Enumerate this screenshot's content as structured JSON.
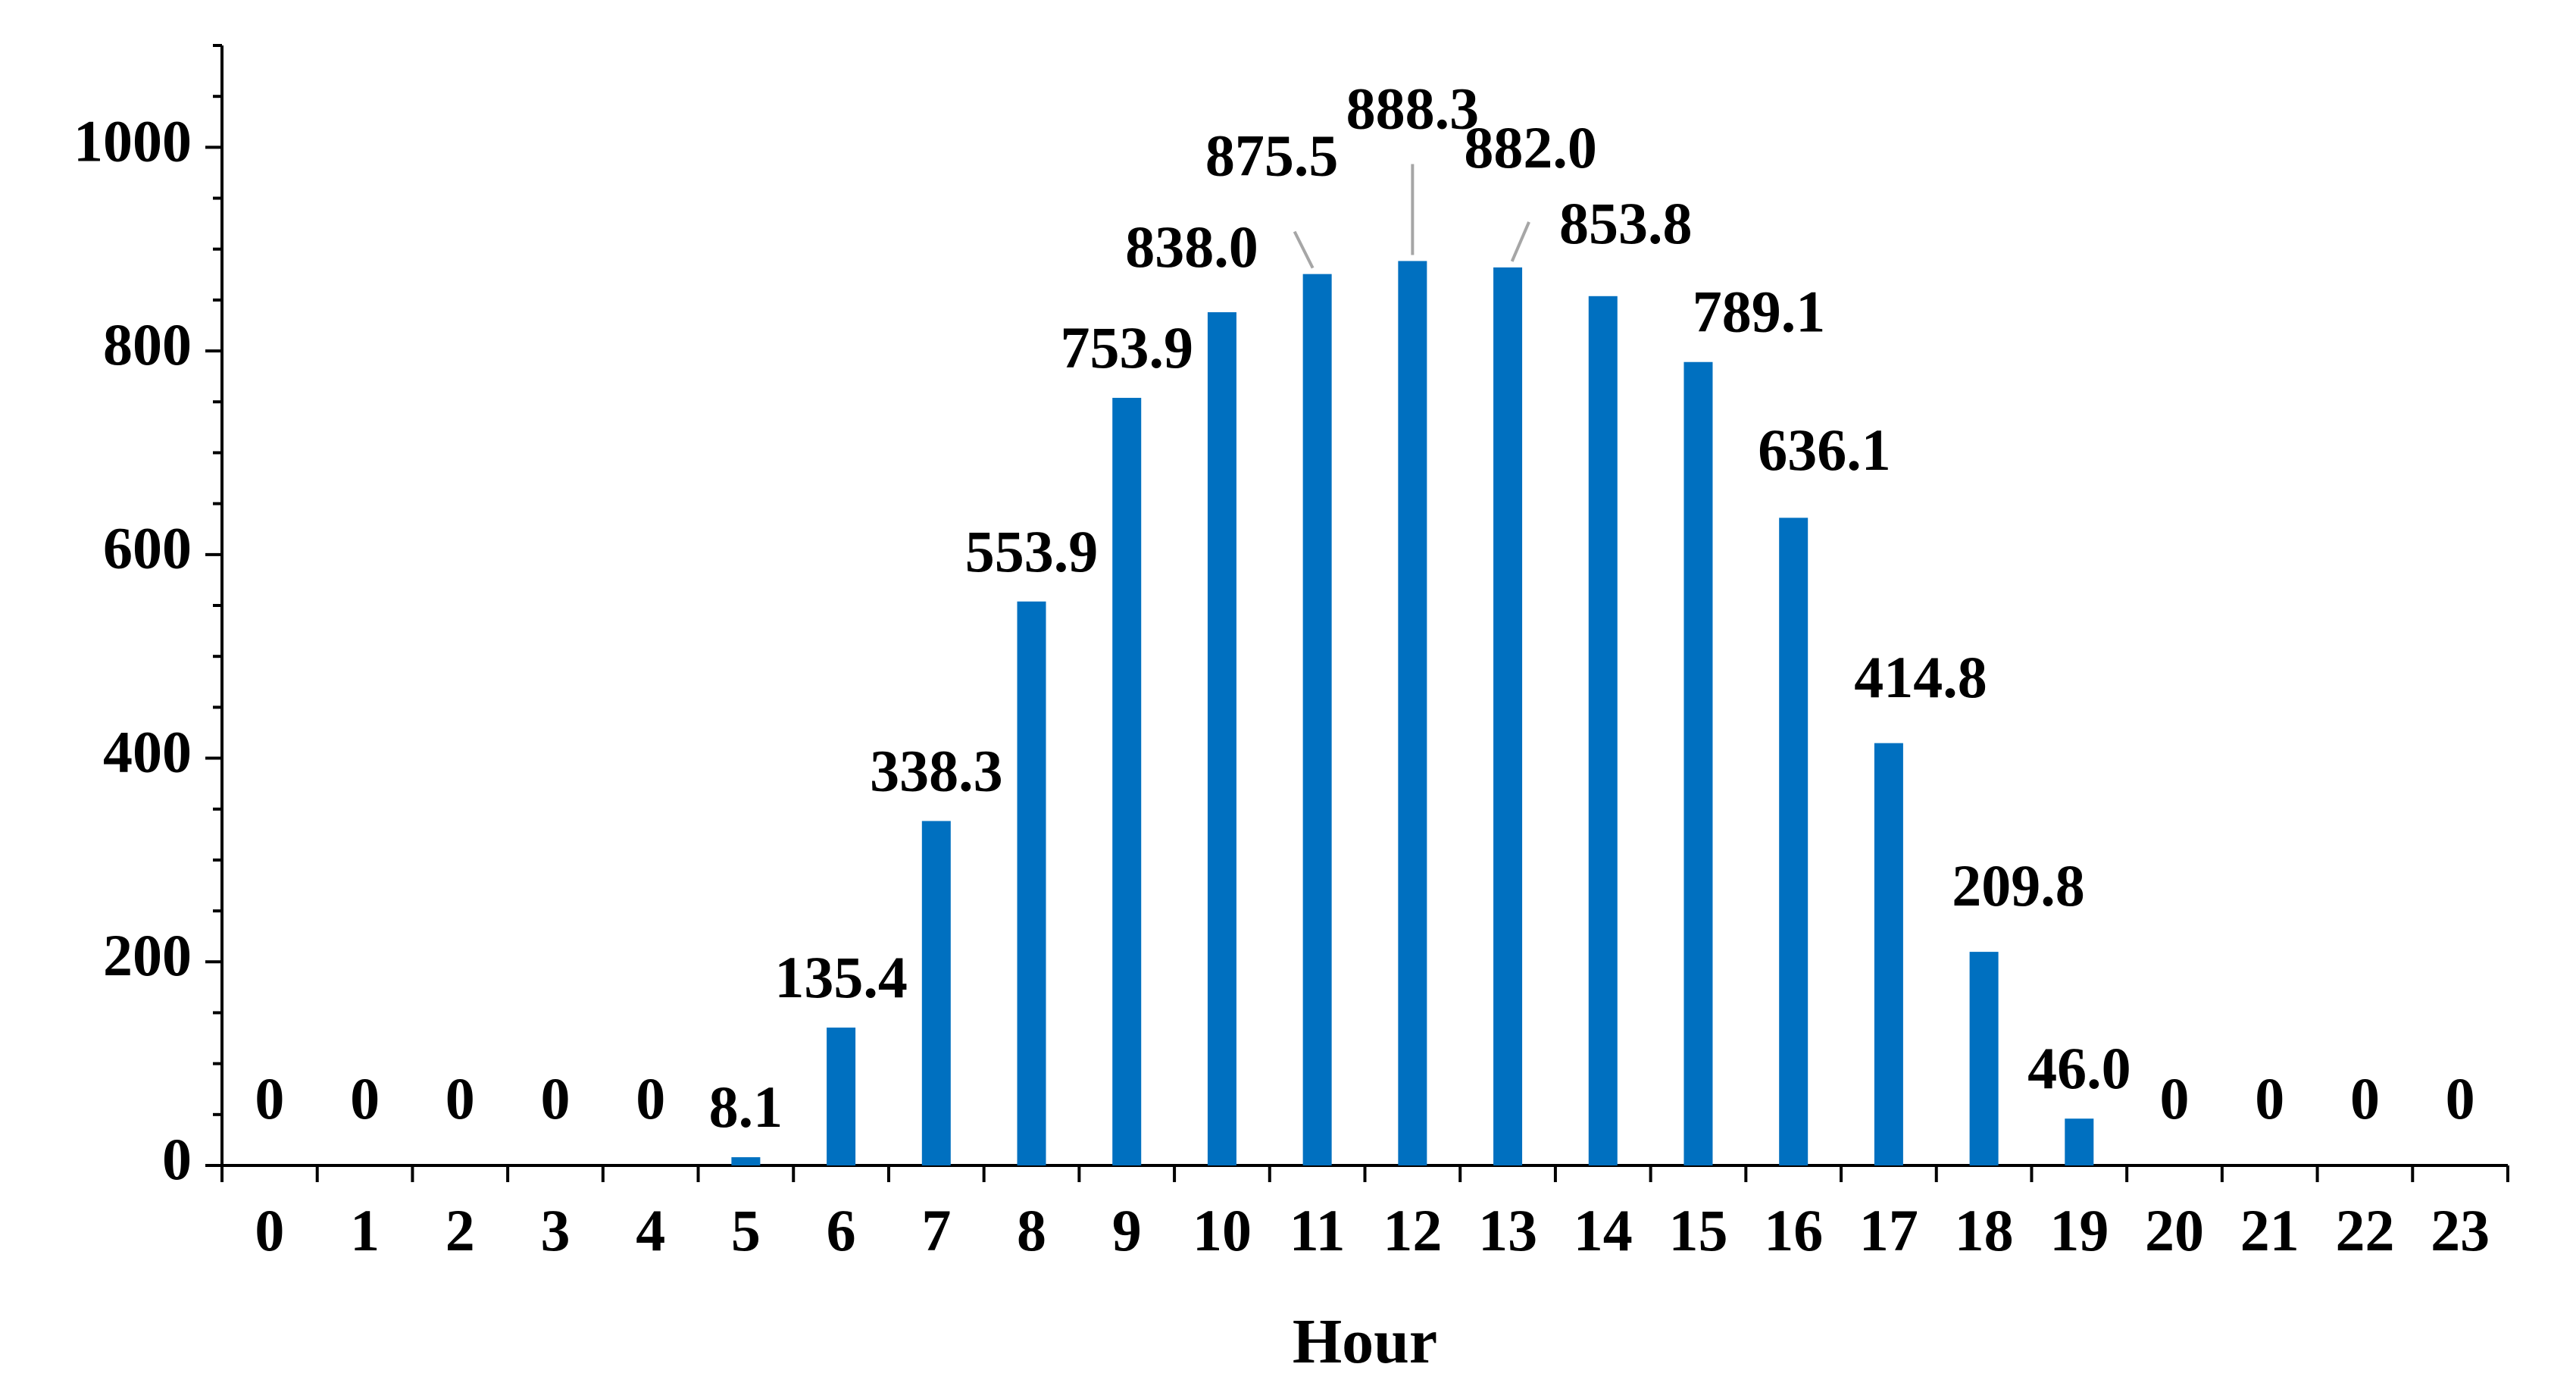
{
  "chart_data": {
    "type": "bar",
    "xlabel": "Hour",
    "ylabel": "",
    "ylim": [
      0,
      1100
    ],
    "yticks": [
      "0",
      "200",
      "400",
      "600",
      "800",
      "1000"
    ],
    "ytick_values": [
      0,
      200,
      400,
      600,
      800,
      1000
    ],
    "categories": [
      "0",
      "1",
      "2",
      "3",
      "4",
      "5",
      "6",
      "7",
      "8",
      "9",
      "10",
      "11",
      "12",
      "13",
      "14",
      "15",
      "16",
      "17",
      "18",
      "19",
      "20",
      "21",
      "22",
      "23"
    ],
    "values": [
      0,
      0,
      0,
      0,
      0,
      8.1,
      135.4,
      338.3,
      553.9,
      753.9,
      838.0,
      875.5,
      888.3,
      882.0,
      853.8,
      789.1,
      636.1,
      414.8,
      209.8,
      46.0,
      0,
      0,
      0,
      0
    ],
    "data_labels": [
      "0",
      "0",
      "0",
      "0",
      "0",
      "8.1",
      "135.4",
      "338.3",
      "553.9",
      "753.9",
      "838.0",
      "875.5",
      "888.3",
      "882.0",
      "853.8",
      "789.1",
      "636.1",
      "414.8",
      "209.8",
      "46.0",
      "0",
      "0",
      "0",
      "0"
    ],
    "grid": false,
    "legend": "none",
    "colors": {
      "bar": "#0070C0",
      "axis": "#000000",
      "leader": "#A6A6A6"
    }
  }
}
